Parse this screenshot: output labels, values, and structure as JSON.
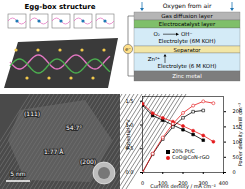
{
  "panels": {
    "egg_box": {
      "title": "Egg-box structure"
    },
    "battery": {
      "title": "Oxygen from air",
      "layers": [
        "Gas diffusion layer",
        "Electrocatalyst layer",
        "Electrolyte (6M KOH)",
        "Separator",
        "Electrolyte (6 M KOH)",
        "Zinc metal"
      ],
      "reaction": {
        "from": "O₂",
        "to": "OH⁻"
      },
      "ion": "Zn²⁺",
      "electron": "e⁻"
    },
    "tem": {
      "labels": [
        "(111)",
        "54.7°",
        "1.77 Å",
        "(200)"
      ],
      "scale_bar": "5 nm"
    }
  },
  "chart_data": {
    "type": "line",
    "x": [
      0,
      50,
      100,
      150,
      200,
      250,
      300,
      350
    ],
    "xlabel": "Current density / mA cm⁻²",
    "ylabel": "Potential / V",
    "y2label": "Power density / mW cm⁻²",
    "xlim": [
      0,
      400
    ],
    "xticks": [
      0,
      100,
      200,
      300,
      400
    ],
    "ylim": [
      0,
      1.6
    ],
    "yticks": [
      {
        "value": 0,
        "label": "0.0"
      },
      0.5,
      {
        "value": 1,
        "label": "1.0"
      },
      1.5
    ],
    "y2lim": [
      0,
      250
    ],
    "y2ticks": [
      0,
      50,
      100,
      150,
      200
    ],
    "legend": "bottom",
    "series": [
      {
        "name": "20% Pt/C",
        "color": "#000000",
        "marker": "square",
        "values": [
          1.42,
          1.2,
          1.1,
          1.0,
          0.9,
          0.8,
          0.68,
          null
        ]
      },
      {
        "name": "CoO@CoN-rGO",
        "color": "#e41a1c",
        "marker": "circle",
        "values": [
          1.45,
          1.25,
          1.15,
          1.07,
          0.98,
          0.88,
          0.78,
          0.65
        ]
      },
      {
        "name": "20% Pt/C",
        "color": "#000000",
        "marker": "square-open",
        "axis": "y2",
        "values": [
          0,
          60,
          110,
          150,
          180,
          200,
          204,
          null
        ]
      },
      {
        "name": "CoO@CoN-rGO",
        "color": "#e41a1c",
        "marker": "circle-open",
        "axis": "y2",
        "values": [
          0,
          62,
          115,
          160,
          196,
          220,
          234,
          228
        ]
      }
    ]
  }
}
